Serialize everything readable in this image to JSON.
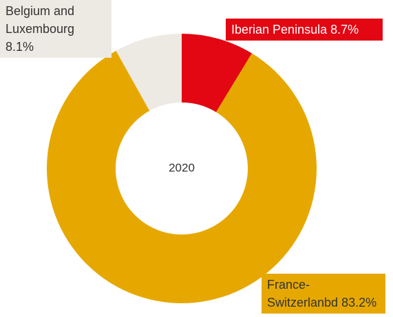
{
  "chart_data": {
    "type": "donut",
    "title": "2020",
    "categories": [
      "Iberian Peninsula",
      "France-Switzerlanbd",
      "Belgium and Luxembourg"
    ],
    "values": [
      8.7,
      83.2,
      8.1
    ],
    "value_labels": [
      "8.7%",
      "83.2%",
      "8.1%"
    ],
    "colors": [
      "#e30613",
      "#e6a800",
      "#ede9e3"
    ]
  }
}
